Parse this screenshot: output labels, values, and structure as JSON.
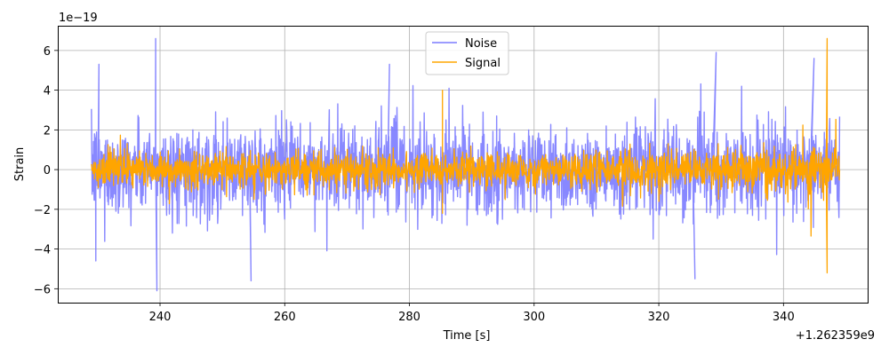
{
  "chart_data": {
    "type": "line",
    "xlabel": "Time [s]",
    "ylabel": "Strain",
    "x_offset_label": "+1.262359e9",
    "y_scale_label": "1e−19",
    "xlim": [
      223.6,
      353.5
    ],
    "ylim": [
      -6.7,
      7.2
    ],
    "x_ticks": [
      240,
      260,
      280,
      300,
      320,
      340
    ],
    "x_tick_labels": [
      "240",
      "260",
      "280",
      "300",
      "320",
      "340"
    ],
    "y_ticks": [
      -6,
      -4,
      -2,
      0,
      2,
      4,
      6
    ],
    "y_tick_labels": [
      "−6",
      "−4",
      "−2",
      "0",
      "2",
      "4",
      "6"
    ],
    "grid": true,
    "legend_position": "top-center",
    "x_range": [
      229,
      349
    ],
    "series": [
      {
        "name": "Noise",
        "color": "#7b7bff",
        "typical_amplitude": 2.2,
        "min": -6.1,
        "max": 6.6,
        "extremes": [
          {
            "x": 239.3,
            "y": 6.6
          },
          {
            "x": 239.5,
            "y": -6.1
          },
          {
            "x": 229.7,
            "y": -4.6
          },
          {
            "x": 230.2,
            "y": 5.3
          },
          {
            "x": 254.6,
            "y": -5.6
          },
          {
            "x": 276.8,
            "y": 5.3
          },
          {
            "x": 325.8,
            "y": -5.5
          },
          {
            "x": 329.2,
            "y": 5.9
          },
          {
            "x": 344.9,
            "y": 5.6
          }
        ]
      },
      {
        "name": "Signal",
        "color": "#ffa500",
        "typical_amplitude": 0.9,
        "min": -5.2,
        "max": 6.6,
        "extremes": [
          {
            "x": 285.3,
            "y": 4.0
          },
          {
            "x": 285.3,
            "y": -2.2
          },
          {
            "x": 347.0,
            "y": 6.6
          },
          {
            "x": 347.0,
            "y": -5.2
          }
        ]
      }
    ]
  }
}
